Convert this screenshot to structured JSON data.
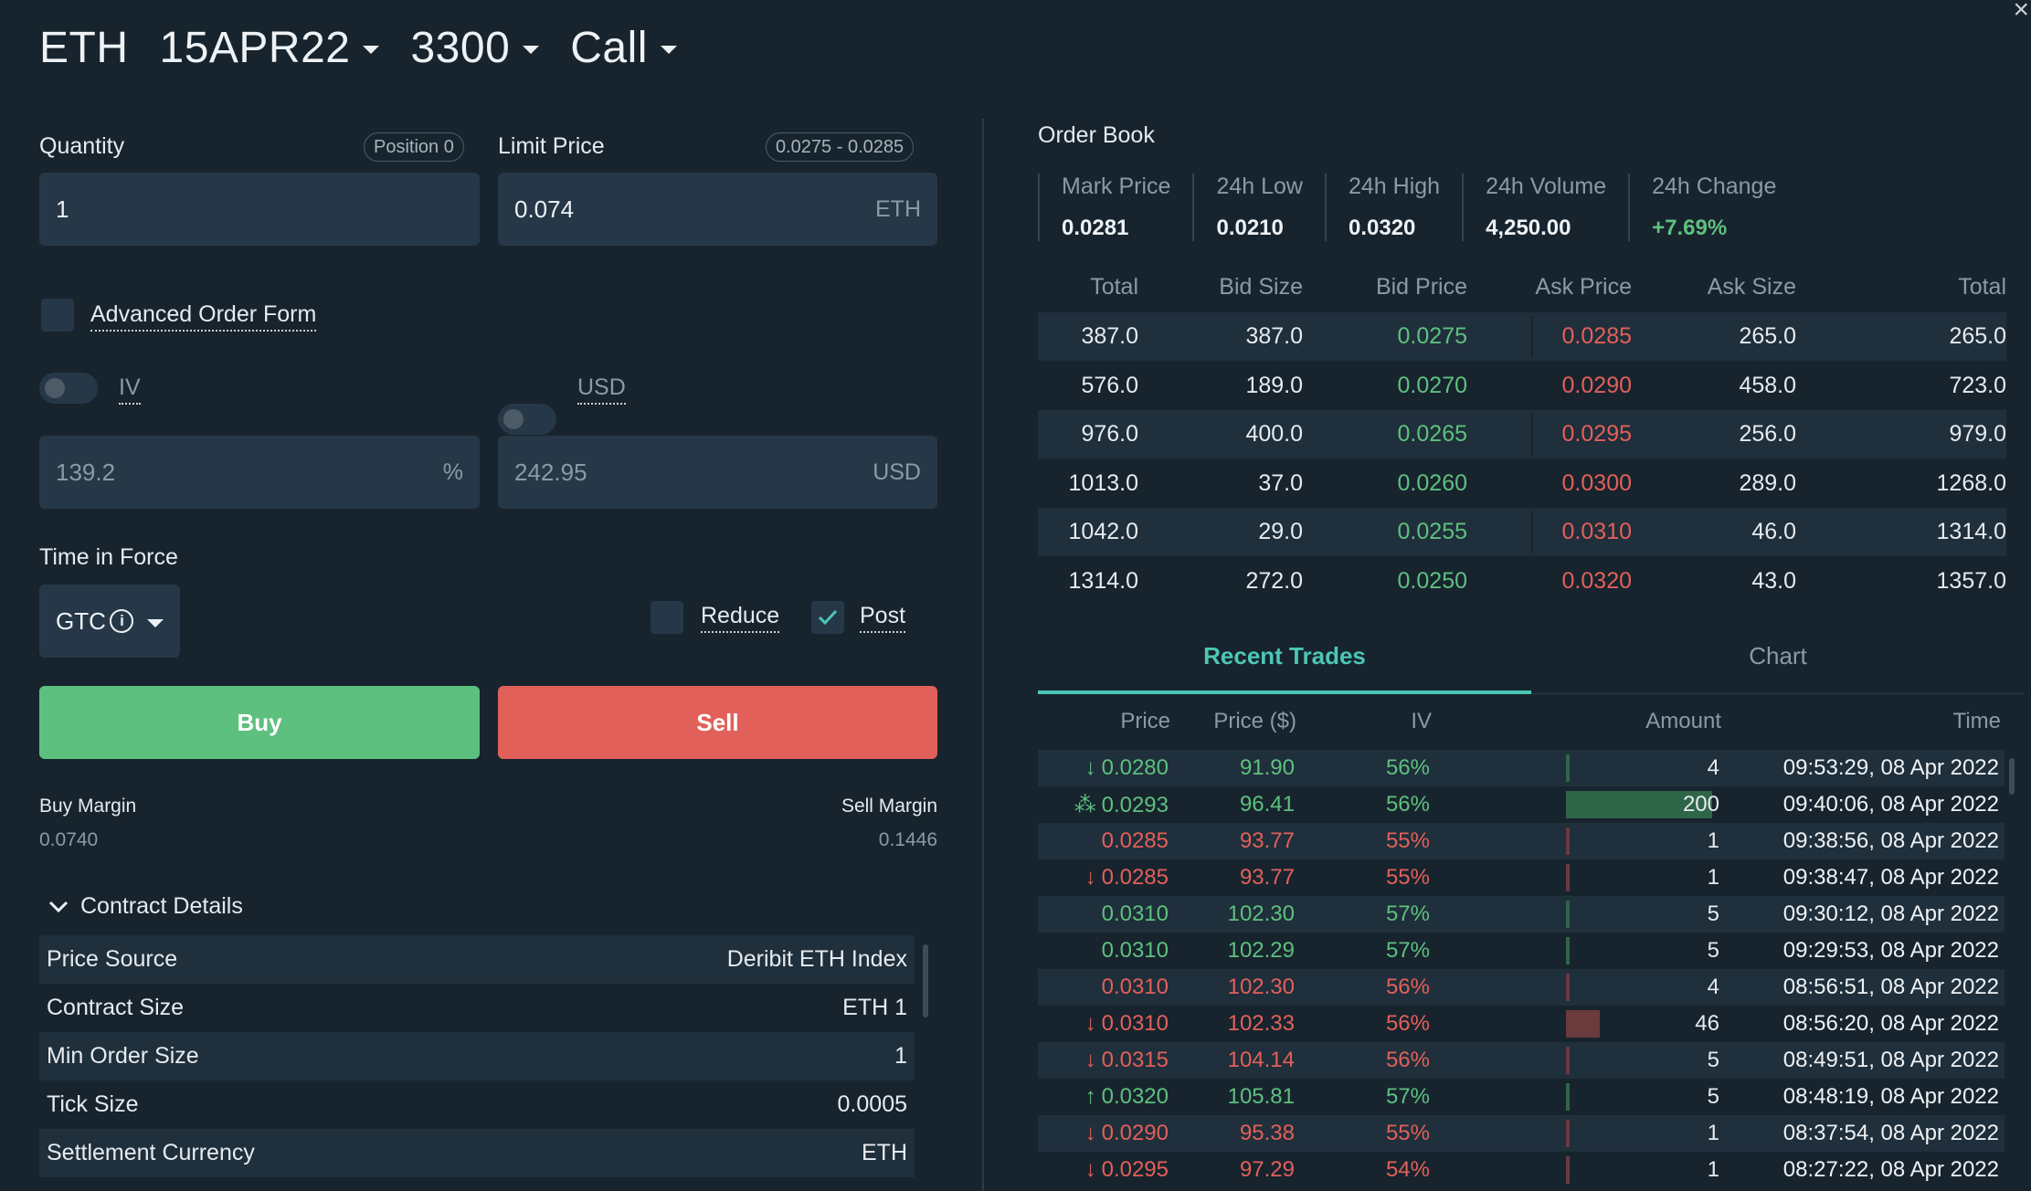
{
  "header": {
    "asset": "ETH",
    "expiry": "15APR22",
    "strike": "3300",
    "type": "Call",
    "close": "×"
  },
  "form": {
    "quantity_label": "Quantity",
    "position_badge": "Position 0",
    "quantity_value": "1",
    "limit_label": "Limit Price",
    "limit_range": "0.0275 - 0.0285",
    "limit_value": "0.074",
    "limit_unit": "ETH",
    "advanced_label": "Advanced Order Form",
    "iv_label": "IV",
    "usd_label": "USD",
    "iv_value": "139.2",
    "iv_unit": "%",
    "usd_value": "242.95",
    "usd_unit": "USD",
    "tif_label": "Time in Force",
    "tif_value": "GTC",
    "reduce_label": "Reduce",
    "post_label": "Post",
    "buy_label": "Buy",
    "sell_label": "Sell",
    "buy_margin_label": "Buy Margin",
    "buy_margin_value": "0.0740",
    "sell_margin_label": "Sell Margin",
    "sell_margin_value": "0.1446"
  },
  "contract": {
    "title": "Contract Details",
    "rows": [
      {
        "label": "Price Source",
        "value": "Deribit ETH Index"
      },
      {
        "label": "Contract Size",
        "value": "ETH 1"
      },
      {
        "label": "Min Order Size",
        "value": "1"
      },
      {
        "label": "Tick Size",
        "value": "0.0005"
      },
      {
        "label": "Settlement Currency",
        "value": "ETH"
      }
    ]
  },
  "orderbook": {
    "title": "Order Book",
    "stats": [
      {
        "label": "Mark Price",
        "value": "0.0281"
      },
      {
        "label": "24h Low",
        "value": "0.0210"
      },
      {
        "label": "24h High",
        "value": "0.0320"
      },
      {
        "label": "24h Volume",
        "value": "4,250.00"
      },
      {
        "label": "24h Change",
        "value": "+7.69%"
      }
    ],
    "headers": [
      "Total",
      "Bid Size",
      "Bid Price",
      "Ask Price",
      "Ask Size",
      "Total"
    ],
    "rows": [
      [
        "387.0",
        "387.0",
        "0.0275",
        "0.0285",
        "265.0",
        "265.0"
      ],
      [
        "576.0",
        "189.0",
        "0.0270",
        "0.0290",
        "458.0",
        "723.0"
      ],
      [
        "976.0",
        "400.0",
        "0.0265",
        "0.0295",
        "256.0",
        "979.0"
      ],
      [
        "1013.0",
        "37.0",
        "0.0260",
        "0.0300",
        "289.0",
        "1268.0"
      ],
      [
        "1042.0",
        "29.0",
        "0.0255",
        "0.0310",
        "46.0",
        "1314.0"
      ],
      [
        "1314.0",
        "272.0",
        "0.0250",
        "0.0320",
        "43.0",
        "1357.0"
      ]
    ]
  },
  "tabs": {
    "recent": "Recent Trades",
    "chart": "Chart"
  },
  "trades": {
    "headers": [
      "Price",
      "Price ($)",
      "IV",
      "Amount",
      "Time"
    ],
    "rows": [
      {
        "dir": "down",
        "side": "buy",
        "price": "0.0280",
        "usd": "91.90",
        "iv": "56%",
        "amount": "4",
        "amt_frac": 0.02,
        "time": "09:53:29, 08 Apr 2022"
      },
      {
        "dir": "block",
        "side": "buy",
        "price": "0.0293",
        "usd": "96.41",
        "iv": "56%",
        "amount": "200",
        "amt_frac": 1.0,
        "time": "09:40:06, 08 Apr 2022"
      },
      {
        "dir": "none",
        "side": "sell",
        "price": "0.0285",
        "usd": "93.77",
        "iv": "55%",
        "amount": "1",
        "amt_frac": 0.005,
        "time": "09:38:56, 08 Apr 2022"
      },
      {
        "dir": "down",
        "side": "sell",
        "price": "0.0285",
        "usd": "93.77",
        "iv": "55%",
        "amount": "1",
        "amt_frac": 0.005,
        "time": "09:38:47, 08 Apr 2022"
      },
      {
        "dir": "none",
        "side": "buy",
        "price": "0.0310",
        "usd": "102.30",
        "iv": "57%",
        "amount": "5",
        "amt_frac": 0.025,
        "time": "09:30:12, 08 Apr 2022"
      },
      {
        "dir": "none",
        "side": "buy",
        "price": "0.0310",
        "usd": "102.29",
        "iv": "57%",
        "amount": "5",
        "amt_frac": 0.025,
        "time": "09:29:53, 08 Apr 2022"
      },
      {
        "dir": "none",
        "side": "sell",
        "price": "0.0310",
        "usd": "102.30",
        "iv": "56%",
        "amount": "4",
        "amt_frac": 0.02,
        "time": "08:56:51, 08 Apr 2022"
      },
      {
        "dir": "down",
        "side": "sell",
        "price": "0.0310",
        "usd": "102.33",
        "iv": "56%",
        "amount": "46",
        "amt_frac": 0.23,
        "time": "08:56:20, 08 Apr 2022"
      },
      {
        "dir": "down",
        "side": "sell",
        "price": "0.0315",
        "usd": "104.14",
        "iv": "56%",
        "amount": "5",
        "amt_frac": 0.025,
        "time": "08:49:51, 08 Apr 2022"
      },
      {
        "dir": "up",
        "side": "buy",
        "price": "0.0320",
        "usd": "105.81",
        "iv": "57%",
        "amount": "5",
        "amt_frac": 0.025,
        "time": "08:48:19, 08 Apr 2022"
      },
      {
        "dir": "down",
        "side": "sell",
        "price": "0.0290",
        "usd": "95.38",
        "iv": "55%",
        "amount": "1",
        "amt_frac": 0.005,
        "time": "08:37:54, 08 Apr 2022"
      },
      {
        "dir": "down",
        "side": "sell",
        "price": "0.0295",
        "usd": "97.29",
        "iv": "54%",
        "amount": "1",
        "amt_frac": 0.005,
        "time": "08:27:22, 08 Apr 2022"
      }
    ]
  },
  "colors": {
    "bid": "#5ec07e",
    "ask": "#e2605a",
    "accent": "#4cc7b5",
    "bg": "#17242e"
  }
}
